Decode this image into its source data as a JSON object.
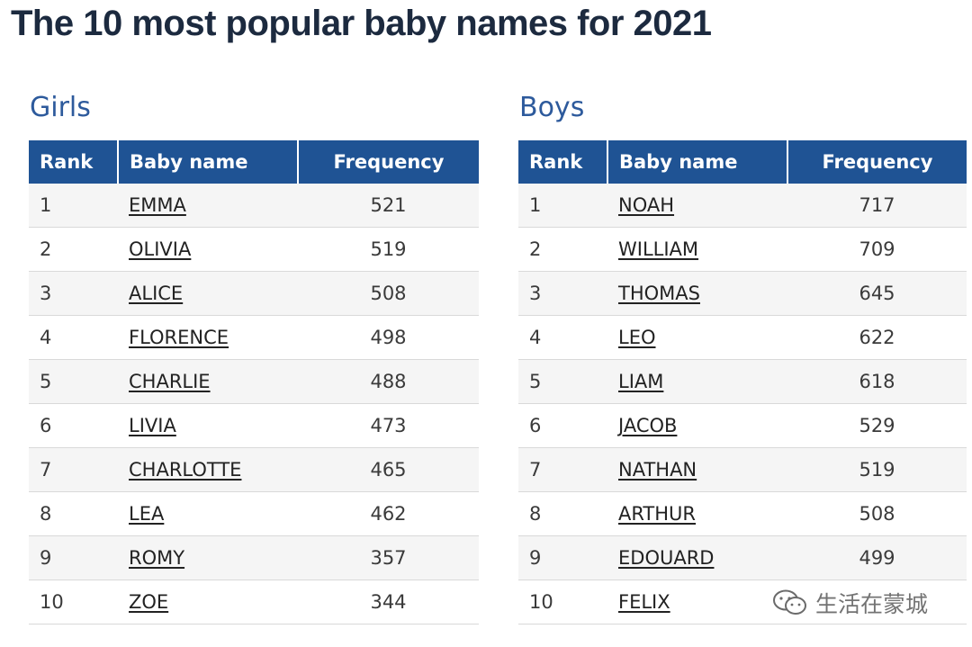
{
  "page": {
    "title": "The 10 most popular baby names for 2021"
  },
  "columns": {
    "rank": "Rank",
    "name": "Baby name",
    "frequency": "Frequency"
  },
  "girls": {
    "heading": "Girls",
    "rows": [
      {
        "rank": "1",
        "name": "EMMA",
        "frequency": "521"
      },
      {
        "rank": "2",
        "name": "OLIVIA",
        "frequency": "519"
      },
      {
        "rank": "3",
        "name": "ALICE",
        "frequency": "508"
      },
      {
        "rank": "4",
        "name": "FLORENCE",
        "frequency": "498"
      },
      {
        "rank": "5",
        "name": "CHARLIE",
        "frequency": "488"
      },
      {
        "rank": "6",
        "name": "LIVIA",
        "frequency": "473"
      },
      {
        "rank": "7",
        "name": "CHARLOTTE",
        "frequency": "465"
      },
      {
        "rank": "8",
        "name": "LEA",
        "frequency": "462"
      },
      {
        "rank": "9",
        "name": "ROMY",
        "frequency": "357"
      },
      {
        "rank": "10",
        "name": "ZOE",
        "frequency": "344"
      }
    ]
  },
  "boys": {
    "heading": "Boys",
    "rows": [
      {
        "rank": "1",
        "name": "NOAH",
        "frequency": "717"
      },
      {
        "rank": "2",
        "name": "WILLIAM",
        "frequency": "709"
      },
      {
        "rank": "3",
        "name": "THOMAS",
        "frequency": "645"
      },
      {
        "rank": "4",
        "name": "LEO",
        "frequency": "622"
      },
      {
        "rank": "5",
        "name": "LIAM",
        "frequency": "618"
      },
      {
        "rank": "6",
        "name": "JACOB",
        "frequency": "529"
      },
      {
        "rank": "7",
        "name": "NATHAN",
        "frequency": "519"
      },
      {
        "rank": "8",
        "name": "ARTHUR",
        "frequency": "508"
      },
      {
        "rank": "9",
        "name": "EDOUARD",
        "frequency": "499"
      },
      {
        "rank": "10",
        "name": "FELIX",
        "frequency": ""
      }
    ]
  },
  "watermark": {
    "text": "生活在蒙城",
    "icon": "wechat-icon"
  },
  "colors": {
    "header_bg": "#1f5394",
    "section_title": "#2d5a9c",
    "page_title": "#1c2a3f"
  }
}
